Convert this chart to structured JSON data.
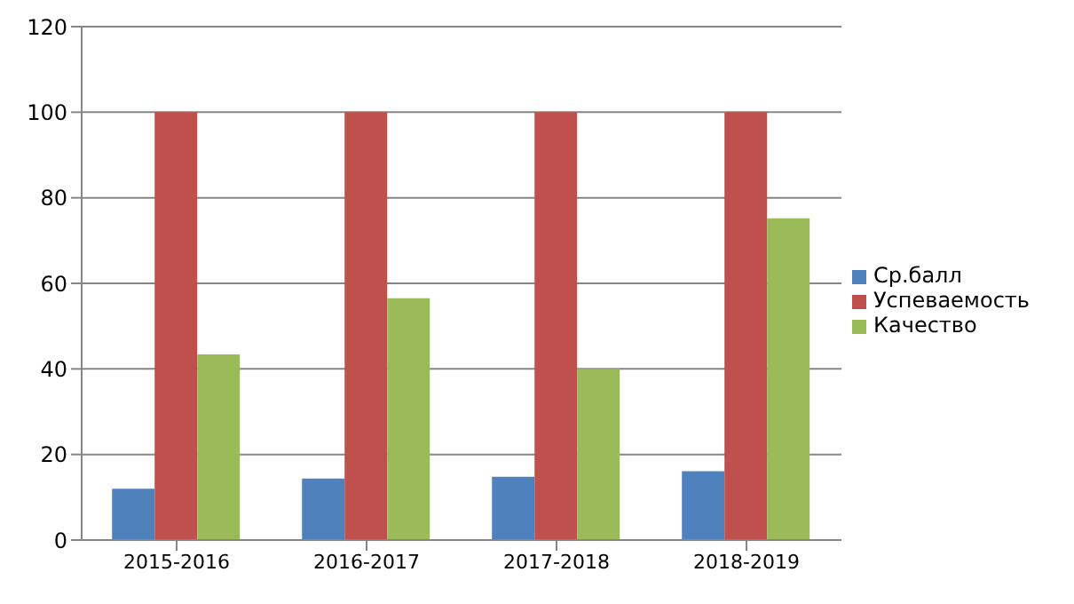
{
  "chart_data": {
    "type": "bar",
    "categories": [
      "2015-2016",
      "2016-2017",
      "2017-2018",
      "2018-2019"
    ],
    "series": [
      {
        "name": "Ср.балл",
        "color": "#4f81bd",
        "values": [
          12,
          14.4,
          14.8,
          16.1
        ]
      },
      {
        "name": "Успеваемость",
        "color": "#c0504d",
        "values": [
          100,
          100,
          100,
          100
        ]
      },
      {
        "name": "Качество",
        "color": "#9bbb59",
        "values": [
          43.4,
          56.5,
          40,
          75.2
        ]
      }
    ],
    "ylim": [
      0,
      120
    ],
    "yticks": [
      0,
      20,
      40,
      60,
      80,
      100,
      120
    ],
    "grid": "y",
    "legend": "right"
  }
}
